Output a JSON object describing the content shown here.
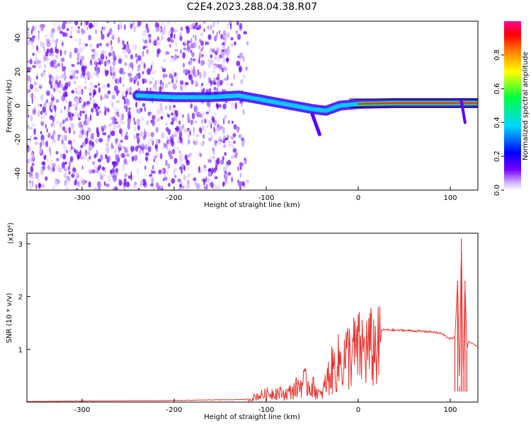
{
  "title": "C2E4.2023.288.04.38.R07",
  "chart_data": [
    {
      "type": "heatmap",
      "xlabel": "Height of straight line (km)",
      "ylabel": "Frequency (Hz)",
      "xlim": [
        -360,
        130
      ],
      "ylim": [
        -50,
        50
      ],
      "x_ticks": [
        -300,
        -200,
        -100,
        0,
        100
      ],
      "y_ticks": [
        -40,
        -20,
        0,
        20,
        40
      ],
      "colorbar": {
        "label": "Normalized spectral amplitude",
        "range": [
          0.0,
          1.0
        ],
        "ticks": [
          0.0,
          0.2,
          0.4,
          0.6,
          0.8
        ],
        "colors": [
          "#ffffff",
          "#7800ff",
          "#0000ff",
          "#00e0ff",
          "#00ff60",
          "#ffff00",
          "#ff8000",
          "#ff0000",
          "#ff0090"
        ]
      },
      "noise_region": {
        "x_range": [
          -360,
          -120
        ],
        "y_range": [
          -50,
          50
        ]
      },
      "signal_track": [
        {
          "x": -240,
          "freq": 6
        },
        {
          "x": -200,
          "freq": 5
        },
        {
          "x": -160,
          "freq": 5
        },
        {
          "x": -130,
          "freq": 6
        },
        {
          "x": -110,
          "freq": 4
        },
        {
          "x": -90,
          "freq": 2
        },
        {
          "x": -70,
          "freq": 0
        },
        {
          "x": -50,
          "freq": -2
        },
        {
          "x": -35,
          "freq": -3
        },
        {
          "x": -20,
          "freq": 0
        },
        {
          "x": 0,
          "freq": 1
        },
        {
          "x": 40,
          "freq": 1.5
        },
        {
          "x": 80,
          "freq": 1.5
        },
        {
          "x": 110,
          "freq": 1.5
        },
        {
          "x": 130,
          "freq": 1.5
        }
      ]
    },
    {
      "type": "line",
      "xlabel": "Height of straight line (km)",
      "ylabel": "SNR (10 * v/v)",
      "y_multiplier": "(x10⁴)",
      "xlim": [
        -360,
        130
      ],
      "ylim": [
        0,
        3.2
      ],
      "x_ticks": [
        -300,
        -200,
        -100,
        0,
        100
      ],
      "y_ticks": [
        1,
        2,
        3
      ],
      "color": "#e8332e",
      "x": [
        -360,
        -300,
        -200,
        -120,
        -110,
        -100,
        -90,
        -80,
        -70,
        -60,
        -50,
        -40,
        -35,
        -30,
        -25,
        -20,
        -15,
        -10,
        -5,
        0,
        10,
        20,
        30,
        40,
        50,
        60,
        70,
        80,
        90,
        95,
        100,
        105,
        108,
        110,
        112,
        114,
        116,
        118,
        120,
        125,
        130
      ],
      "y": [
        0.01,
        0.02,
        0.03,
        0.05,
        0.15,
        0.2,
        0.25,
        0.2,
        0.3,
        0.5,
        0.4,
        0.15,
        0.5,
        0.75,
        0.9,
        1.0,
        1.1,
        1.2,
        1.25,
        1.3,
        1.33,
        1.36,
        1.37,
        1.36,
        1.36,
        1.35,
        1.34,
        1.33,
        1.3,
        1.25,
        1.2,
        1.22,
        2.3,
        0.3,
        3.1,
        0.5,
        2.3,
        1.0,
        1.15,
        1.1,
        1.05
      ]
    }
  ]
}
